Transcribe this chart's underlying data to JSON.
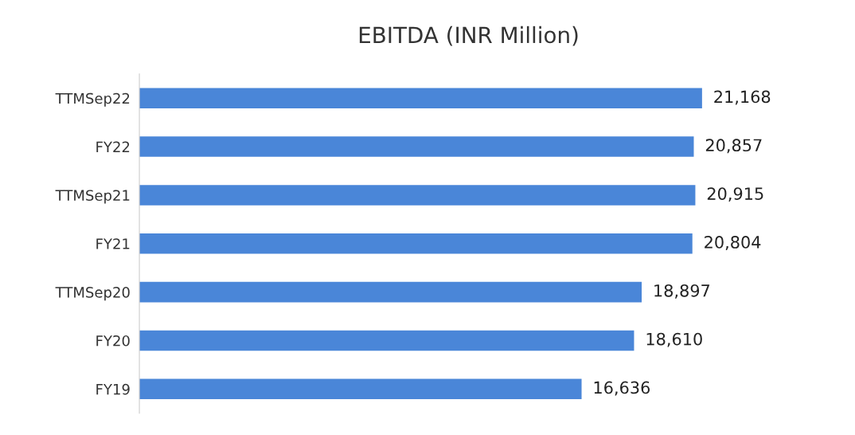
{
  "chart_data": {
    "type": "bar",
    "orientation": "horizontal",
    "title": "EBITDA (INR Million)",
    "categories": [
      "TTMSep22",
      "FY22",
      "TTMSep21",
      "FY21",
      "TTMSep20",
      "FY20",
      "FY19"
    ],
    "values": [
      21168,
      20857,
      20915,
      20804,
      18897,
      18610,
      16636
    ],
    "value_labels": [
      "21,168",
      "20,857",
      "20,915",
      "20,804",
      "18,897",
      "18,610",
      "16,636"
    ],
    "color": "#4a86d8",
    "grid": false,
    "legend": false,
    "tick_labels": "y"
  }
}
